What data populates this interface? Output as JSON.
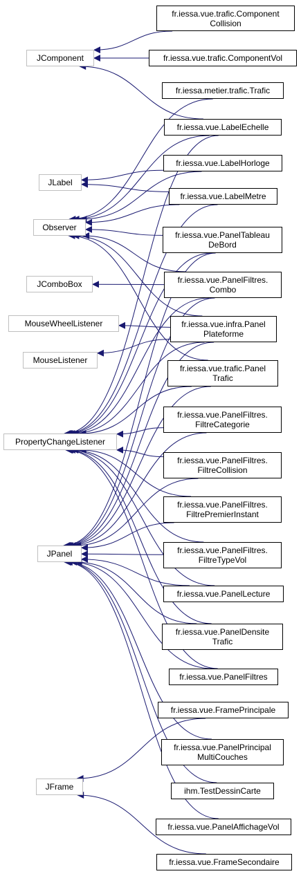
{
  "colors": {
    "edge": "#191970",
    "external_border": "#bfbfbf",
    "class_border": "#000000",
    "background": "#ffffff"
  },
  "nodes": {
    "JComponent": {
      "lines": [
        "JComponent"
      ],
      "external": true
    },
    "JLabel": {
      "lines": [
        "JLabel"
      ],
      "external": true
    },
    "Observer": {
      "lines": [
        "Observer"
      ],
      "external": true
    },
    "JComboBox": {
      "lines": [
        "JComboBox"
      ],
      "external": true
    },
    "MouseWheelListener": {
      "lines": [
        "MouseWheelListener"
      ],
      "external": true
    },
    "MouseListener": {
      "lines": [
        "MouseListener"
      ],
      "external": true
    },
    "PropertyChangeListener": {
      "lines": [
        "PropertyChangeListener"
      ],
      "external": true
    },
    "JPanel": {
      "lines": [
        "JPanel"
      ],
      "external": true
    },
    "JFrame": {
      "lines": [
        "JFrame"
      ],
      "external": true
    },
    "ComponentCollision": {
      "lines": [
        "fr.iessa.vue.trafic.Component",
        "Collision"
      ],
      "external": false
    },
    "ComponentVol": {
      "lines": [
        "fr.iessa.vue.trafic.ComponentVol"
      ],
      "external": false
    },
    "Trafic": {
      "lines": [
        "fr.iessa.metier.trafic.Trafic"
      ],
      "external": false
    },
    "LabelEchelle": {
      "lines": [
        "fr.iessa.vue.LabelEchelle"
      ],
      "external": false
    },
    "LabelHorloge": {
      "lines": [
        "fr.iessa.vue.LabelHorloge"
      ],
      "external": false
    },
    "LabelMetre": {
      "lines": [
        "fr.iessa.vue.LabelMetre"
      ],
      "external": false
    },
    "PanelTableauDeBord": {
      "lines": [
        "fr.iessa.vue.PanelTableau",
        "DeBord"
      ],
      "external": false
    },
    "PanelFiltresCombo": {
      "lines": [
        "fr.iessa.vue.PanelFiltres.",
        "Combo"
      ],
      "external": false
    },
    "PanelPlateforme": {
      "lines": [
        "fr.iessa.vue.infra.Panel",
        "Plateforme"
      ],
      "external": false
    },
    "PanelTrafic": {
      "lines": [
        "fr.iessa.vue.trafic.Panel",
        "Trafic"
      ],
      "external": false
    },
    "FiltreCategorie": {
      "lines": [
        "fr.iessa.vue.PanelFiltres.",
        "FiltreCategorie"
      ],
      "external": false
    },
    "FiltreCollision": {
      "lines": [
        "fr.iessa.vue.PanelFiltres.",
        "FiltreCollision"
      ],
      "external": false
    },
    "FiltrePremierInstant": {
      "lines": [
        "fr.iessa.vue.PanelFiltres.",
        "FiltrePremierInstant"
      ],
      "external": false
    },
    "FiltreTypeVol": {
      "lines": [
        "fr.iessa.vue.PanelFiltres.",
        "FiltreTypeVol"
      ],
      "external": false
    },
    "PanelLecture": {
      "lines": [
        "fr.iessa.vue.PanelLecture"
      ],
      "external": false
    },
    "PanelDensiteTrafic": {
      "lines": [
        "fr.iessa.vue.PanelDensite",
        "Trafic"
      ],
      "external": false
    },
    "PanelFiltres": {
      "lines": [
        "fr.iessa.vue.PanelFiltres"
      ],
      "external": false
    },
    "FramePrincipale": {
      "lines": [
        "fr.iessa.vue.FramePrincipale"
      ],
      "external": false
    },
    "PanelPrincipalMultiCouches": {
      "lines": [
        "fr.iessa.vue.PanelPrincipal",
        "MultiCouches"
      ],
      "external": false
    },
    "TestDessinCarte": {
      "lines": [
        "ihm.TestDessinCarte"
      ],
      "external": false
    },
    "PanelAffichageVol": {
      "lines": [
        "fr.iessa.vue.PanelAffichageVol"
      ],
      "external": false
    },
    "FrameSecondaire": {
      "lines": [
        "fr.iessa.vue.FrameSecondaire"
      ],
      "external": false
    }
  },
  "edges": [
    [
      "ComponentCollision",
      "JComponent"
    ],
    [
      "ComponentVol",
      "JComponent"
    ],
    [
      "LabelEchelle",
      "JComponent"
    ],
    [
      "LabelHorloge",
      "JLabel"
    ],
    [
      "LabelMetre",
      "JLabel"
    ],
    [
      "Trafic",
      "Observer"
    ],
    [
      "LabelEchelle",
      "Observer"
    ],
    [
      "LabelHorloge",
      "Observer"
    ],
    [
      "LabelMetre",
      "Observer"
    ],
    [
      "PanelTableauDeBord",
      "Observer"
    ],
    [
      "PanelFiltresCombo",
      "Observer"
    ],
    [
      "PanelPlateforme",
      "Observer"
    ],
    [
      "PanelTrafic",
      "Observer"
    ],
    [
      "PanelFiltresCombo",
      "JComboBox"
    ],
    [
      "PanelPlateforme",
      "MouseWheelListener"
    ],
    [
      "PanelPlateforme",
      "MouseListener"
    ],
    [
      "LabelEchelle",
      "PropertyChangeListener"
    ],
    [
      "LabelMetre",
      "PropertyChangeListener"
    ],
    [
      "PanelTableauDeBord",
      "PropertyChangeListener"
    ],
    [
      "PanelFiltresCombo",
      "PropertyChangeListener"
    ],
    [
      "PanelPlateforme",
      "PropertyChangeListener"
    ],
    [
      "PanelTrafic",
      "PropertyChangeListener"
    ],
    [
      "FiltreCategorie",
      "PropertyChangeListener"
    ],
    [
      "FiltreCollision",
      "PropertyChangeListener"
    ],
    [
      "FiltrePremierInstant",
      "PropertyChangeListener"
    ],
    [
      "FiltreTypeVol",
      "PropertyChangeListener"
    ],
    [
      "PanelLecture",
      "PropertyChangeListener"
    ],
    [
      "PanelDensiteTrafic",
      "PropertyChangeListener"
    ],
    [
      "PanelFiltres",
      "PropertyChangeListener"
    ],
    [
      "PanelTableauDeBord",
      "JPanel"
    ],
    [
      "PanelFiltresCombo",
      "JPanel"
    ],
    [
      "PanelPlateforme",
      "JPanel"
    ],
    [
      "PanelTrafic",
      "JPanel"
    ],
    [
      "FiltreCategorie",
      "JPanel"
    ],
    [
      "FiltreCollision",
      "JPanel"
    ],
    [
      "FiltrePremierInstant",
      "JPanel"
    ],
    [
      "FiltreTypeVol",
      "JPanel"
    ],
    [
      "PanelLecture",
      "JPanel"
    ],
    [
      "PanelDensiteTrafic",
      "JPanel"
    ],
    [
      "PanelFiltres",
      "JPanel"
    ],
    [
      "PanelPrincipalMultiCouches",
      "JPanel"
    ],
    [
      "TestDessinCarte",
      "JPanel"
    ],
    [
      "PanelAffichageVol",
      "JPanel"
    ],
    [
      "FramePrincipale",
      "JFrame"
    ],
    [
      "FrameSecondaire",
      "JFrame"
    ]
  ]
}
